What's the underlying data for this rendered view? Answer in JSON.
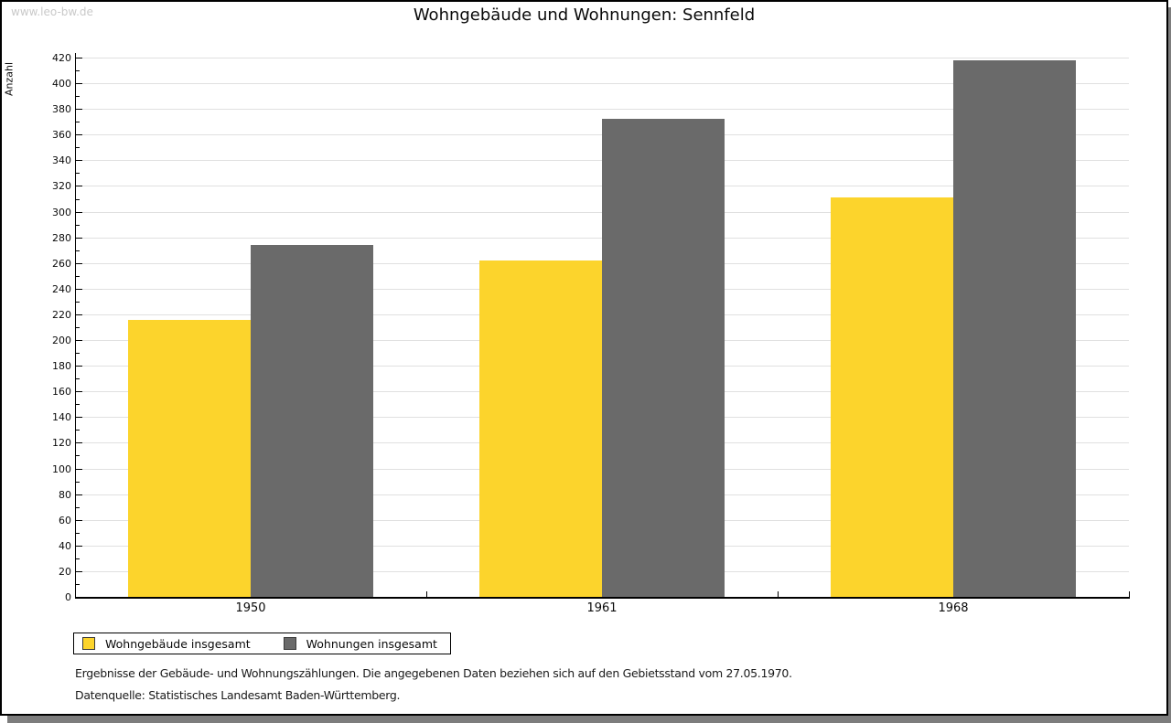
{
  "watermark": "www.leo-bw.de",
  "title": "Wohngebäude und Wohnungen: Sennfeld",
  "footnote1": "Ergebnisse der Gebäude- und Wohnungszählungen. Die angegebenen Daten beziehen sich auf den Gebietsstand vom 27.05.1970.",
  "footnote2": "Datenquelle: Statistisches Landesamt Baden-Württemberg.",
  "colors": {
    "bar_yellow": "#fcd42c",
    "bar_gray": "#6a6a6a",
    "gridline": "#e0e0e0",
    "axis": "#000000",
    "watermark": "#c9c9c9",
    "frame_shadow": "#7d7d7d"
  },
  "chart_data": {
    "type": "bar",
    "title": "Wohngebäude und Wohnungen: Sennfeld",
    "categories": [
      "1950",
      "1961",
      "1968"
    ],
    "series": [
      {
        "name": "Wohngebäude insgesamt",
        "color": "#fcd42c",
        "values": [
          216,
          262,
          311
        ]
      },
      {
        "name": "Wohnungen insgesamt",
        "color": "#6a6a6a",
        "values": [
          274,
          372,
          418
        ]
      }
    ],
    "xlabel": "",
    "ylabel": "Anzahl",
    "ylim": [
      0,
      420
    ],
    "ytick_step": 20,
    "ytick_minor_step": 10,
    "grid": true,
    "legend_position": "bottom-left"
  }
}
